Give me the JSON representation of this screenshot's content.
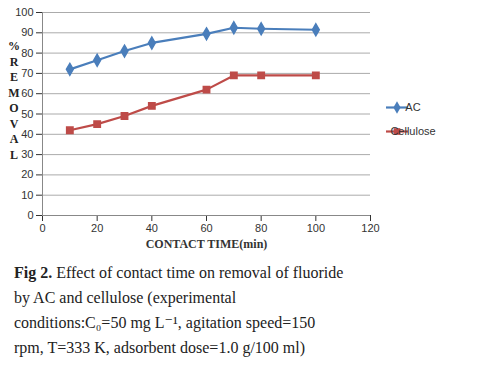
{
  "chart_data": {
    "type": "line",
    "x_label": "CONTACT TIME(min)",
    "y_label": "% REMOVAL",
    "figure_label": "Fig 2.",
    "caption": "Effect of contact time on removal of fluoride by AC and cellulose (experimental conditions:C₀=50 mg L⁻¹, agitation speed=150 rpm, T=333 K, adsorbent dose=1.0 g/100 ml)",
    "x": [
      10,
      20,
      30,
      40,
      60,
      70,
      80,
      100
    ],
    "series": [
      {
        "name": "AC",
        "color": "#4a7ebb",
        "marker": "diamond",
        "values": [
          72,
          76.5,
          81,
          85,
          89.5,
          92.5,
          92,
          91.5
        ]
      },
      {
        "name": "Cellulose",
        "color": "#be4b48",
        "marker": "square",
        "values": [
          42,
          45,
          49,
          54,
          62,
          69,
          69,
          69
        ]
      }
    ],
    "xlim": [
      0,
      120
    ],
    "xticks": [
      0,
      20,
      40,
      60,
      80,
      100,
      120
    ],
    "ylim": [
      0,
      100
    ],
    "yticks": [
      0,
      10,
      20,
      30,
      40,
      50,
      60,
      70,
      80,
      90,
      100
    ],
    "grid": true,
    "legend": "right"
  }
}
